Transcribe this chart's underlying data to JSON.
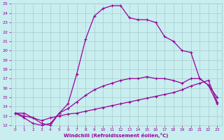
{
  "xlabel": "Windchill (Refroidissement éolien,°C)",
  "xlim": [
    -0.5,
    23.5
  ],
  "ylim": [
    12,
    25
  ],
  "xticks": [
    0,
    1,
    2,
    3,
    4,
    5,
    6,
    7,
    8,
    9,
    10,
    11,
    12,
    13,
    14,
    15,
    16,
    17,
    18,
    19,
    20,
    21,
    22,
    23
  ],
  "yticks": [
    12,
    13,
    14,
    15,
    16,
    17,
    18,
    19,
    20,
    21,
    22,
    23,
    24,
    25
  ],
  "bg_color": "#c8eef0",
  "line_color": "#990099",
  "grid_color": "#aacccc",
  "line1_x": [
    0,
    1,
    2,
    3,
    4,
    5,
    6,
    7,
    8,
    9,
    10,
    11,
    12,
    13,
    14,
    15,
    16,
    17,
    18,
    19,
    20,
    21,
    22,
    23
  ],
  "line1_y": [
    13.3,
    13.3,
    12.8,
    12.2,
    12.0,
    13.3,
    14.3,
    17.5,
    21.2,
    23.7,
    24.5,
    24.8,
    24.8,
    23.5,
    23.3,
    23.3,
    23.0,
    21.5,
    21.0,
    20.0,
    19.8,
    17.0,
    16.3,
    14.3
  ],
  "line2_x": [
    0,
    1,
    2,
    3,
    4,
    5,
    6,
    7,
    8,
    9,
    10,
    11,
    12,
    13,
    14,
    15,
    16,
    17,
    18,
    19,
    20,
    21,
    22,
    23
  ],
  "line2_y": [
    13.3,
    12.8,
    12.2,
    12.0,
    12.2,
    13.3,
    13.8,
    14.5,
    15.2,
    15.8,
    16.2,
    16.5,
    16.8,
    17.0,
    17.0,
    17.2,
    17.0,
    17.0,
    16.8,
    16.5,
    17.0,
    17.0,
    16.3,
    15.0
  ],
  "line3_x": [
    0,
    1,
    2,
    3,
    4,
    5,
    6,
    7,
    8,
    9,
    10,
    11,
    12,
    13,
    14,
    15,
    16,
    17,
    18,
    19,
    20,
    21,
    22,
    23
  ],
  "line3_y": [
    13.3,
    13.0,
    12.8,
    12.5,
    12.8,
    13.0,
    13.2,
    13.3,
    13.5,
    13.7,
    13.9,
    14.1,
    14.3,
    14.5,
    14.7,
    14.9,
    15.1,
    15.3,
    15.5,
    15.8,
    16.2,
    16.5,
    16.8,
    14.5
  ]
}
